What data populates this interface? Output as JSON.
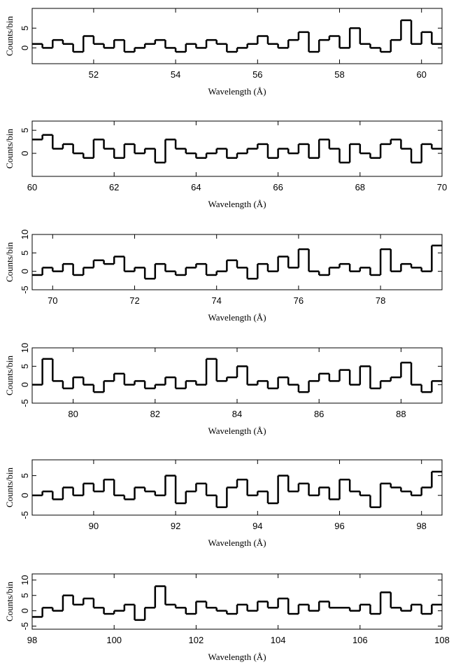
{
  "chart_data": [
    {
      "type": "histogram",
      "xlabel": "Wavelength (Å)",
      "ylabel": "Counts/bin",
      "color": "#000000",
      "bins": [
        50.5,
        50.75,
        51,
        51.25,
        51.5,
        51.75,
        52,
        52.25,
        52.5,
        52.75,
        53,
        53.25,
        53.5,
        53.75,
        54,
        54.25,
        54.5,
        54.75,
        55,
        55.25,
        55.5,
        55.75,
        56,
        56.25,
        56.5,
        56.75,
        57,
        57.25,
        57.5,
        57.75,
        58,
        58.25,
        58.5,
        58.75,
        59,
        59.25,
        59.5,
        59.75,
        60,
        60.25,
        60.5
      ],
      "values": [
        1,
        0,
        2,
        1,
        -1,
        3,
        1,
        0,
        2,
        -1,
        0,
        1,
        2,
        0,
        -1,
        1,
        0,
        2,
        1,
        -1,
        0,
        1,
        3,
        1,
        0,
        2,
        4,
        -1,
        2,
        3,
        0,
        5,
        1,
        0,
        -1,
        2,
        7,
        1,
        4,
        1
      ],
      "xlim": [
        50.5,
        60.5
      ],
      "xticks": [
        52,
        54,
        56,
        58,
        60
      ],
      "ylim": [
        -4,
        10
      ],
      "yticks": [
        0,
        5
      ]
    },
    {
      "type": "histogram",
      "xlabel": "Wavelength (Å)",
      "ylabel": "Counts/bin",
      "color": "#000000",
      "bins": [
        60,
        60.25,
        60.5,
        60.75,
        61,
        61.25,
        61.5,
        61.75,
        62,
        62.25,
        62.5,
        62.75,
        63,
        63.25,
        63.5,
        63.75,
        64,
        64.25,
        64.5,
        64.75,
        65,
        65.25,
        65.5,
        65.75,
        66,
        66.25,
        66.5,
        66.75,
        67,
        67.25,
        67.5,
        67.75,
        68,
        68.25,
        68.5,
        68.75,
        69,
        69.25,
        69.5,
        69.75,
        70
      ],
      "values": [
        3,
        4,
        1,
        2,
        0,
        -1,
        3,
        1,
        -1,
        2,
        0,
        1,
        -2,
        3,
        1,
        0,
        -1,
        0,
        1,
        -1,
        0,
        1,
        2,
        -1,
        1,
        0,
        2,
        -1,
        3,
        1,
        -2,
        2,
        0,
        -1,
        2,
        3,
        1,
        -2,
        2,
        1
      ],
      "xlim": [
        60,
        70
      ],
      "xticks": [
        60,
        62,
        64,
        66,
        68,
        70
      ],
      "ylim": [
        -5,
        7
      ],
      "yticks": [
        0,
        5
      ]
    },
    {
      "type": "histogram",
      "xlabel": "Wavelength (Å)",
      "ylabel": "Counts/bin",
      "color": "#000000",
      "bins": [
        69.5,
        69.75,
        70,
        70.25,
        70.5,
        70.75,
        71,
        71.25,
        71.5,
        71.75,
        72,
        72.25,
        72.5,
        72.75,
        73,
        73.25,
        73.5,
        73.75,
        74,
        74.25,
        74.5,
        74.75,
        75,
        75.25,
        75.5,
        75.75,
        76,
        76.25,
        76.5,
        76.75,
        77,
        77.25,
        77.5,
        77.75,
        78,
        78.25,
        78.5,
        78.75,
        79,
        79.25,
        79.5
      ],
      "values": [
        -1,
        1,
        0,
        2,
        -1,
        1,
        3,
        2,
        4,
        0,
        1,
        -2,
        2,
        0,
        -1,
        1,
        2,
        -1,
        0,
        3,
        1,
        -2,
        2,
        0,
        4,
        1,
        6,
        0,
        -1,
        1,
        2,
        0,
        1,
        -1,
        6,
        0,
        2,
        1,
        0,
        7
      ],
      "xlim": [
        69.5,
        79.5
      ],
      "xticks": [
        70,
        72,
        74,
        76,
        78
      ],
      "ylim": [
        -5,
        10
      ],
      "yticks": [
        -5,
        0,
        5,
        10
      ]
    },
    {
      "type": "histogram",
      "xlabel": "Wavelength (Å)",
      "ylabel": "Counts/bin",
      "color": "#000000",
      "bins": [
        79,
        79.25,
        79.5,
        79.75,
        80,
        80.25,
        80.5,
        80.75,
        81,
        81.25,
        81.5,
        81.75,
        82,
        82.25,
        82.5,
        82.75,
        83,
        83.25,
        83.5,
        83.75,
        84,
        84.25,
        84.5,
        84.75,
        85,
        85.25,
        85.5,
        85.75,
        86,
        86.25,
        86.5,
        86.75,
        87,
        87.25,
        87.5,
        87.75,
        88,
        88.25,
        88.5,
        88.75,
        89
      ],
      "values": [
        0,
        7,
        1,
        -1,
        2,
        0,
        -2,
        1,
        3,
        0,
        1,
        -1,
        0,
        2,
        -1,
        1,
        0,
        7,
        1,
        2,
        5,
        0,
        1,
        -1,
        2,
        0,
        -2,
        1,
        3,
        1,
        4,
        0,
        5,
        -1,
        1,
        2,
        6,
        0,
        -2,
        1
      ],
      "xlim": [
        79,
        89
      ],
      "xticks": [
        80,
        82,
        84,
        86,
        88
      ],
      "ylim": [
        -5,
        10
      ],
      "yticks": [
        -5,
        0,
        5,
        10
      ]
    },
    {
      "type": "histogram",
      "xlabel": "Wavelength (Å)",
      "ylabel": "Counts/bin",
      "color": "#000000",
      "bins": [
        88.5,
        88.75,
        89,
        89.25,
        89.5,
        89.75,
        90,
        90.25,
        90.5,
        90.75,
        91,
        91.25,
        91.5,
        91.75,
        92,
        92.25,
        92.5,
        92.75,
        93,
        93.25,
        93.5,
        93.75,
        94,
        94.25,
        94.5,
        94.75,
        95,
        95.25,
        95.5,
        95.75,
        96,
        96.25,
        96.5,
        96.75,
        97,
        97.25,
        97.5,
        97.75,
        98,
        98.25,
        98.5
      ],
      "values": [
        0,
        1,
        -1,
        2,
        0,
        3,
        1,
        4,
        0,
        -1,
        2,
        1,
        0,
        5,
        -2,
        1,
        3,
        0,
        -3,
        2,
        4,
        0,
        1,
        -2,
        5,
        1,
        3,
        0,
        2,
        -1,
        4,
        1,
        0,
        -3,
        3,
        2,
        1,
        0,
        2,
        6
      ],
      "xlim": [
        88.5,
        98.5
      ],
      "xticks": [
        90,
        92,
        94,
        96,
        98
      ],
      "ylim": [
        -5,
        9
      ],
      "yticks": [
        -5,
        0,
        5
      ]
    },
    {
      "type": "histogram",
      "xlabel": "Wavelength (Å)",
      "ylabel": "Counts/bin",
      "color": "#000000",
      "bins": [
        98,
        98.25,
        98.5,
        98.75,
        99,
        99.25,
        99.5,
        99.75,
        100,
        100.25,
        100.5,
        100.75,
        101,
        101.25,
        101.5,
        101.75,
        102,
        102.25,
        102.5,
        102.75,
        103,
        103.25,
        103.5,
        103.75,
        104,
        104.25,
        104.5,
        104.75,
        105,
        105.25,
        105.5,
        105.75,
        106,
        106.25,
        106.5,
        106.75,
        107,
        107.25,
        107.5,
        107.75,
        108
      ],
      "values": [
        -2,
        1,
        0,
        5,
        2,
        4,
        1,
        -1,
        0,
        2,
        -3,
        1,
        8,
        2,
        1,
        -1,
        3,
        1,
        0,
        -1,
        2,
        0,
        3,
        1,
        4,
        -1,
        2,
        0,
        3,
        1,
        1,
        0,
        2,
        -1,
        6,
        1,
        0,
        2,
        -1,
        2
      ],
      "xlim": [
        98,
        108
      ],
      "xticks": [
        98,
        100,
        102,
        104,
        106,
        108
      ],
      "ylim": [
        -6,
        12
      ],
      "yticks": [
        -5,
        0,
        5,
        10
      ]
    }
  ]
}
